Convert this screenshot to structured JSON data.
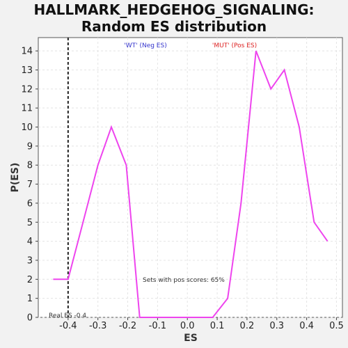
{
  "chart_data": {
    "type": "line",
    "title_line1": "HALLMARK_HEDGEHOG_SIGNALING:",
    "title_line2": "Random ES distribution",
    "xlabel": "ES",
    "ylabel": "P(ES)",
    "xlim": [
      -0.5,
      0.52
    ],
    "ylim": [
      0,
      14.7
    ],
    "xticks": [
      "-0.4",
      "-0.3",
      "-0.2",
      "-0.1",
      "0.0",
      "0.1",
      "0.2",
      "0.3",
      "0.4",
      "0.5"
    ],
    "xtick_values": [
      -0.4,
      -0.3,
      -0.2,
      -0.1,
      0.0,
      0.1,
      0.2,
      0.3,
      0.4,
      0.5
    ],
    "yticks": [
      "0",
      "1",
      "2",
      "3",
      "4",
      "5",
      "6",
      "7",
      "8",
      "9",
      "10",
      "11",
      "12",
      "13",
      "14"
    ],
    "ytick_values": [
      0,
      1,
      2,
      3,
      4,
      5,
      6,
      7,
      8,
      9,
      10,
      11,
      12,
      13,
      14
    ],
    "grid": true,
    "series": [
      {
        "color": "#ee44ee",
        "x": [
          -0.45,
          -0.4,
          -0.35,
          -0.3,
          -0.255,
          -0.205,
          -0.16,
          -0.11,
          -0.06,
          -0.015,
          0.035,
          0.085,
          0.135,
          0.18,
          0.23,
          0.28,
          0.325,
          0.375,
          0.425,
          0.47
        ],
        "y": [
          2,
          2,
          5,
          8,
          10,
          8,
          0,
          0,
          0,
          0,
          0,
          0,
          1,
          6,
          14,
          12,
          13,
          10,
          5,
          4
        ]
      }
    ],
    "real_es": {
      "x": -0.4,
      "label": "Real ES -0.4"
    },
    "annotations": {
      "wt_label": "'WT' (Neg ES)",
      "mut_label": "'MUT' (Pos ES)",
      "pos_scores": "Sets with pos scores: 65%"
    },
    "colors": {
      "wt": "#3333cc",
      "mut": "#dd2222",
      "grid": "#e4e4e4",
      "frame": "#555555",
      "plot_bg": "#ffffff"
    }
  }
}
